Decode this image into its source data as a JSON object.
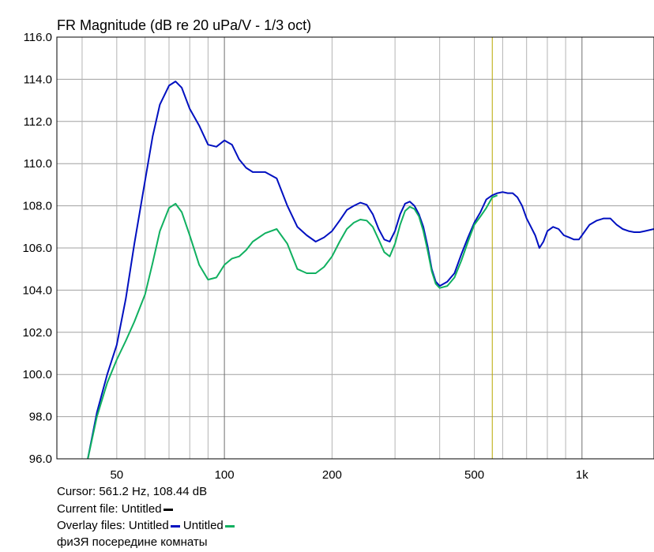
{
  "chart_data": {
    "type": "line",
    "title": "FR Magnitude (dB re 20 uPa/V - 1/3 oct)",
    "xlabel": "",
    "ylabel": "",
    "x_scale": "log",
    "xlim": [
      34,
      1590
    ],
    "ylim": [
      96.0,
      116.0
    ],
    "y_ticks": [
      "96.0",
      "98.0",
      "100.0",
      "102.0",
      "104.0",
      "106.0",
      "108.0",
      "110.0",
      "112.0",
      "114.0",
      "116.0"
    ],
    "x_ticks": [
      {
        "value": 50,
        "label": "50"
      },
      {
        "value": 100,
        "label": "100"
      },
      {
        "value": 200,
        "label": "200"
      },
      {
        "value": 500,
        "label": "500"
      },
      {
        "value": 1000,
        "label": "1k"
      }
    ],
    "grid": true,
    "cursor": {
      "x": 561.2,
      "color": "#b8a800"
    },
    "series": [
      {
        "color": "#0010c0",
        "x": [
          41.5,
          44,
          47,
          50,
          53,
          56,
          60,
          63,
          66,
          70,
          73,
          76,
          80,
          85,
          90,
          95,
          100,
          105,
          110,
          115,
          120,
          130,
          140,
          150,
          160,
          170,
          180,
          190,
          200,
          210,
          220,
          230,
          240,
          250,
          260,
          270,
          280,
          290,
          300,
          310,
          320,
          330,
          340,
          350,
          360,
          370,
          380,
          390,
          400,
          420,
          440,
          460,
          480,
          500,
          520,
          540,
          561,
          580,
          600,
          620,
          640,
          660,
          680,
          700,
          720,
          740,
          760,
          780,
          800,
          830,
          860,
          890,
          920,
          950,
          980,
          1000,
          1050,
          1100,
          1150,
          1200,
          1250,
          1300,
          1350,
          1400,
          1450,
          1500,
          1590
        ],
        "y": [
          96.0,
          98.2,
          100.0,
          101.4,
          103.6,
          106.2,
          109.2,
          111.3,
          112.8,
          113.7,
          113.9,
          113.6,
          112.6,
          111.8,
          110.9,
          110.8,
          111.1,
          110.9,
          110.2,
          109.8,
          109.6,
          109.6,
          109.3,
          108.0,
          107.0,
          106.6,
          106.3,
          106.5,
          106.8,
          107.3,
          107.8,
          108.0,
          108.15,
          108.05,
          107.6,
          106.9,
          106.4,
          106.3,
          106.8,
          107.6,
          108.1,
          108.2,
          108.0,
          107.6,
          107.0,
          106.1,
          105.0,
          104.4,
          104.2,
          104.4,
          104.8,
          105.7,
          106.5,
          107.2,
          107.7,
          108.3,
          108.5,
          108.6,
          108.65,
          108.6,
          108.6,
          108.4,
          108.0,
          107.4,
          107.0,
          106.6,
          106.0,
          106.3,
          106.8,
          107.0,
          106.9,
          106.6,
          106.5,
          106.4,
          106.4,
          106.6,
          107.1,
          107.3,
          107.4,
          107.4,
          107.1,
          106.9,
          106.8,
          106.75,
          106.75,
          106.8,
          106.9
        ]
      },
      {
        "color": "#10b060",
        "x": [
          41.5,
          44,
          47,
          50,
          53,
          56,
          60,
          63,
          66,
          70,
          73,
          76,
          80,
          85,
          90,
          95,
          100,
          105,
          110,
          115,
          120,
          130,
          140,
          150,
          160,
          170,
          180,
          190,
          200,
          210,
          220,
          230,
          240,
          250,
          260,
          270,
          280,
          290,
          300,
          310,
          320,
          330,
          340,
          350,
          360,
          370,
          380,
          390,
          400,
          420,
          440,
          460,
          480,
          500,
          520,
          540,
          561,
          580
        ],
        "y": [
          96.0,
          98.0,
          99.6,
          100.7,
          101.6,
          102.5,
          103.8,
          105.3,
          106.8,
          107.9,
          108.1,
          107.7,
          106.6,
          105.2,
          104.5,
          104.6,
          105.2,
          105.5,
          105.6,
          105.9,
          106.3,
          106.7,
          106.9,
          106.2,
          105.0,
          104.8,
          104.8,
          105.1,
          105.6,
          106.3,
          106.9,
          107.2,
          107.35,
          107.3,
          107.0,
          106.4,
          105.8,
          105.6,
          106.2,
          107.1,
          107.75,
          107.95,
          107.85,
          107.5,
          106.8,
          105.9,
          104.9,
          104.3,
          104.1,
          104.2,
          104.6,
          105.4,
          106.3,
          107.1,
          107.5,
          107.9,
          108.4,
          108.5
        ]
      }
    ]
  },
  "footer": {
    "cursor_text": "Cursor: 561.2 Hz, 108.44 dB",
    "current_file_text": "Current file: Untitled",
    "overlay_files_text": "Overlay files: Untitled",
    "overlay_second_text": "Untitled",
    "note_text": "фиЗЯ  посередине комнаты",
    "current_file_swatch_color": "#000000",
    "overlay_swatch_1_color": "#0010c0",
    "overlay_swatch_2_color": "#10b060"
  }
}
